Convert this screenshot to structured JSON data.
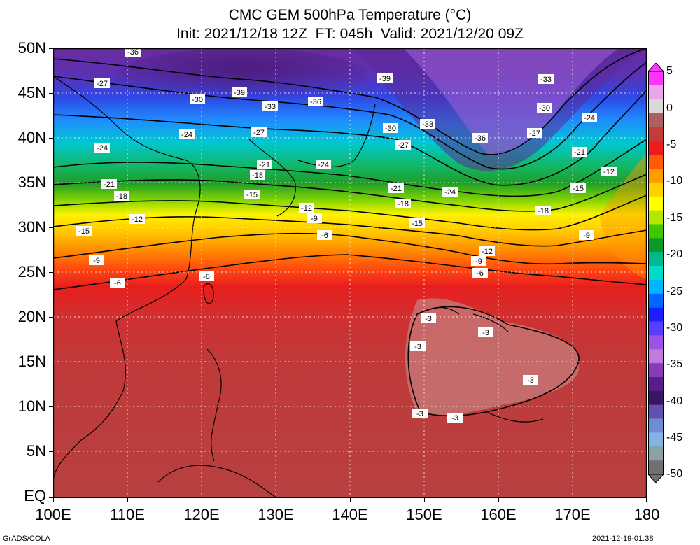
{
  "header": {
    "title_line1": "CMC GEM 500hPa Temperature (°C)",
    "title_line2": "Init: 2021/12/18 12Z  FT: 045h  Valid: 2021/12/20 09Z"
  },
  "axes": {
    "lat_labels": [
      "50N",
      "45N",
      "40N",
      "35N",
      "30N",
      "25N",
      "20N",
      "15N",
      "10N",
      "5N",
      "EQ"
    ],
    "lon_labels": [
      "100E",
      "110E",
      "120E",
      "130E",
      "140E",
      "150E",
      "160E",
      "170E",
      "180"
    ]
  },
  "colorbar": {
    "labels": [
      "5",
      "0",
      "-5",
      "-10",
      "-15",
      "-20",
      "-25",
      "-30",
      "-35",
      "-40",
      "-45",
      "-50"
    ],
    "colors": [
      "#ff35ff",
      "#e9a6e9",
      "#d9d9d9",
      "#ac6060",
      "#c53a3a",
      "#ee1d1d",
      "#ff5a08",
      "#ff9c00",
      "#ffd000",
      "#ffff00",
      "#b4e600",
      "#3ec800",
      "#0a9a2a",
      "#00b98e",
      "#00dcc8",
      "#00b4ff",
      "#0068ff",
      "#1e1eff",
      "#5a3cff",
      "#9a55e6",
      "#c07ae0",
      "#8a3bbb",
      "#5a1e8c",
      "#3c1464",
      "#6050b0",
      "#6e8cd2",
      "#84b4e6",
      "#8ca0a8",
      "#707070"
    ]
  },
  "map": {
    "land_color": "#b87070",
    "contour_labels": [
      {
        "text": "-36"
      },
      {
        "text": "-27"
      },
      {
        "text": "-39"
      },
      {
        "text": "-30"
      },
      {
        "text": "-33"
      },
      {
        "text": "-36"
      },
      {
        "text": "-39"
      },
      {
        "text": "-33"
      },
      {
        "text": "-30"
      },
      {
        "text": "-24"
      },
      {
        "text": "-27"
      },
      {
        "text": "-30"
      },
      {
        "text": "-33"
      },
      {
        "text": "-27"
      },
      {
        "text": "-36"
      },
      {
        "text": "-24"
      },
      {
        "text": "-27"
      },
      {
        "text": "-24"
      },
      {
        "text": "-21"
      },
      {
        "text": "-24"
      },
      {
        "text": "-12"
      },
      {
        "text": "-21"
      },
      {
        "text": "-18"
      },
      {
        "text": "-15"
      },
      {
        "text": "-21"
      },
      {
        "text": "-18"
      },
      {
        "text": "-21"
      },
      {
        "text": "-24"
      },
      {
        "text": "-18"
      },
      {
        "text": "-15"
      },
      {
        "text": "-12"
      },
      {
        "text": "-12"
      },
      {
        "text": "-9"
      },
      {
        "text": "-15"
      },
      {
        "text": "-18"
      },
      {
        "text": "-15"
      },
      {
        "text": "-9"
      },
      {
        "text": "-6"
      },
      {
        "text": "-12"
      },
      {
        "text": "-9"
      },
      {
        "text": "-6"
      },
      {
        "text": "-9"
      },
      {
        "text": "-6"
      },
      {
        "text": "-6"
      },
      {
        "text": "-3"
      },
      {
        "text": "-3"
      },
      {
        "text": "-3"
      },
      {
        "text": "-3"
      },
      {
        "text": "-3"
      },
      {
        "text": "-3"
      }
    ]
  },
  "footer": {
    "left": "GrADS/COLA",
    "right": "2021-12-19-01:38"
  }
}
